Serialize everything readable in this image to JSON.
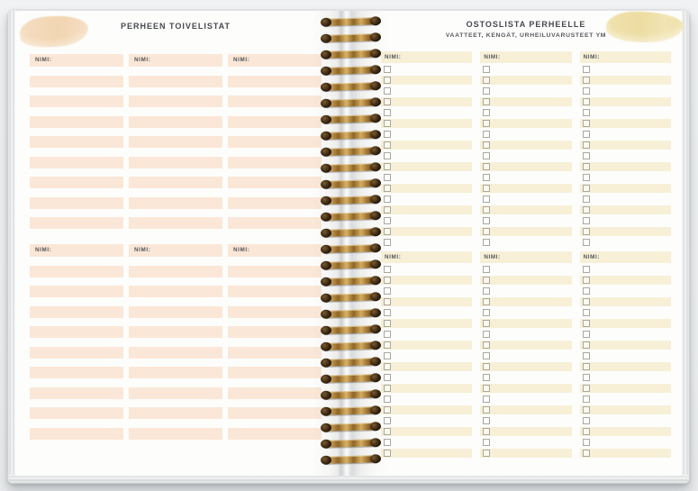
{
  "book": {
    "binding_coils": 28,
    "binding_color": "#b9913f"
  },
  "colors": {
    "background": "#eef0f2",
    "paper": "#fdfdfc",
    "title_text": "#45484d",
    "label_text": "#53555a",
    "left_row": "#fbe7d7",
    "right_row": "#f7f0d7",
    "peach_swash": "#f5dcbd",
    "yellow_swash": "#f0e0a9",
    "checkbox_border": "#a9a89e"
  },
  "left_page": {
    "title": "PERHEEN TOIVELISTAT",
    "column_header": "NIMI:",
    "columns": 3,
    "sections": [
      {
        "rows": 8
      },
      {
        "rows": 9
      }
    ]
  },
  "right_page": {
    "title": "OSTOSLISTA PERHEELLE",
    "subtitle": "VAATTEET, KENGÄT, URHEILUVARUSTEET YM",
    "column_header": "NIMI:",
    "columns": 3,
    "has_checkboxes": true,
    "sections": [
      {
        "rows": 17
      },
      {
        "rows": 18
      }
    ]
  }
}
